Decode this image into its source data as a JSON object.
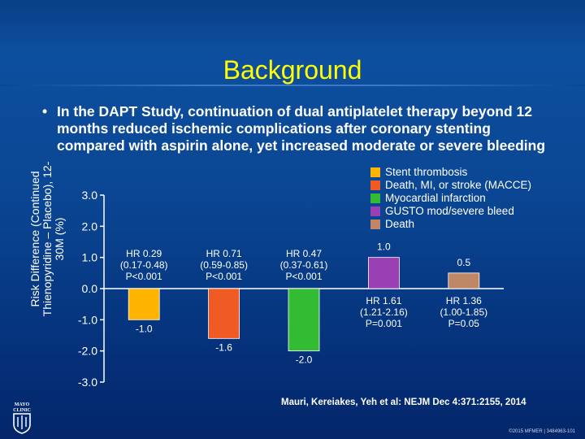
{
  "slide": {
    "title": "Background",
    "bullet_text": "In the DAPT Study, continuation of dual antiplatelet therapy beyond 12 months reduced ischemic complications after coronary stenting compared with aspirin alone, yet increased moderate or severe bleeding",
    "citation": "Mauri, Kereiakes, Yeh et al:  NEJM Dec 4:371:2155, 2014",
    "copyright": "©2015 MFMER  |  3484963-101",
    "logo_text": "MAYO CLINIC"
  },
  "chart_data": {
    "type": "bar",
    "title": "",
    "xlabel": "",
    "ylabel": "Risk Difference (Continued Thienopyridine – Placebo), 12-30M (%)",
    "ylim": [
      -3.0,
      3.0
    ],
    "yticks": [
      "3.0",
      "2.0",
      "1.0",
      "0.0",
      "-1.0",
      "-2.0",
      "-3.0"
    ],
    "legend_position": "top-right",
    "grid": false,
    "categories": [
      "Stent thrombosis",
      "Death, MI, or stroke (MACCE)",
      "Myocardial infarction",
      "GUSTO mod/severe bleed",
      "Death"
    ],
    "values": [
      -1.0,
      -1.6,
      -2.0,
      1.0,
      0.5
    ],
    "value_labels": [
      "-1.0",
      "-1.6",
      "-2.0",
      "1.0",
      "0.5"
    ],
    "colors": [
      "#ffb400",
      "#f05a23",
      "#33bb33",
      "#9b3fb5",
      "#c08766"
    ],
    "hr_annotations": [
      {
        "hr": "HR 0.29",
        "ci": "(0.17-0.48)",
        "p": "P<0.001"
      },
      {
        "hr": "HR 0.71",
        "ci": "(0.59-0.85)",
        "p": "P<0.001"
      },
      {
        "hr": "HR 0.47",
        "ci": "(0.37-0.61)",
        "p": "P<0.001"
      },
      {
        "hr": "HR 1.61",
        "ci": "(1.21-2.16)",
        "p": "P=0.001"
      },
      {
        "hr": "HR 1.36",
        "ci": "(1.00-1.85)",
        "p": "P=0.05"
      }
    ]
  }
}
